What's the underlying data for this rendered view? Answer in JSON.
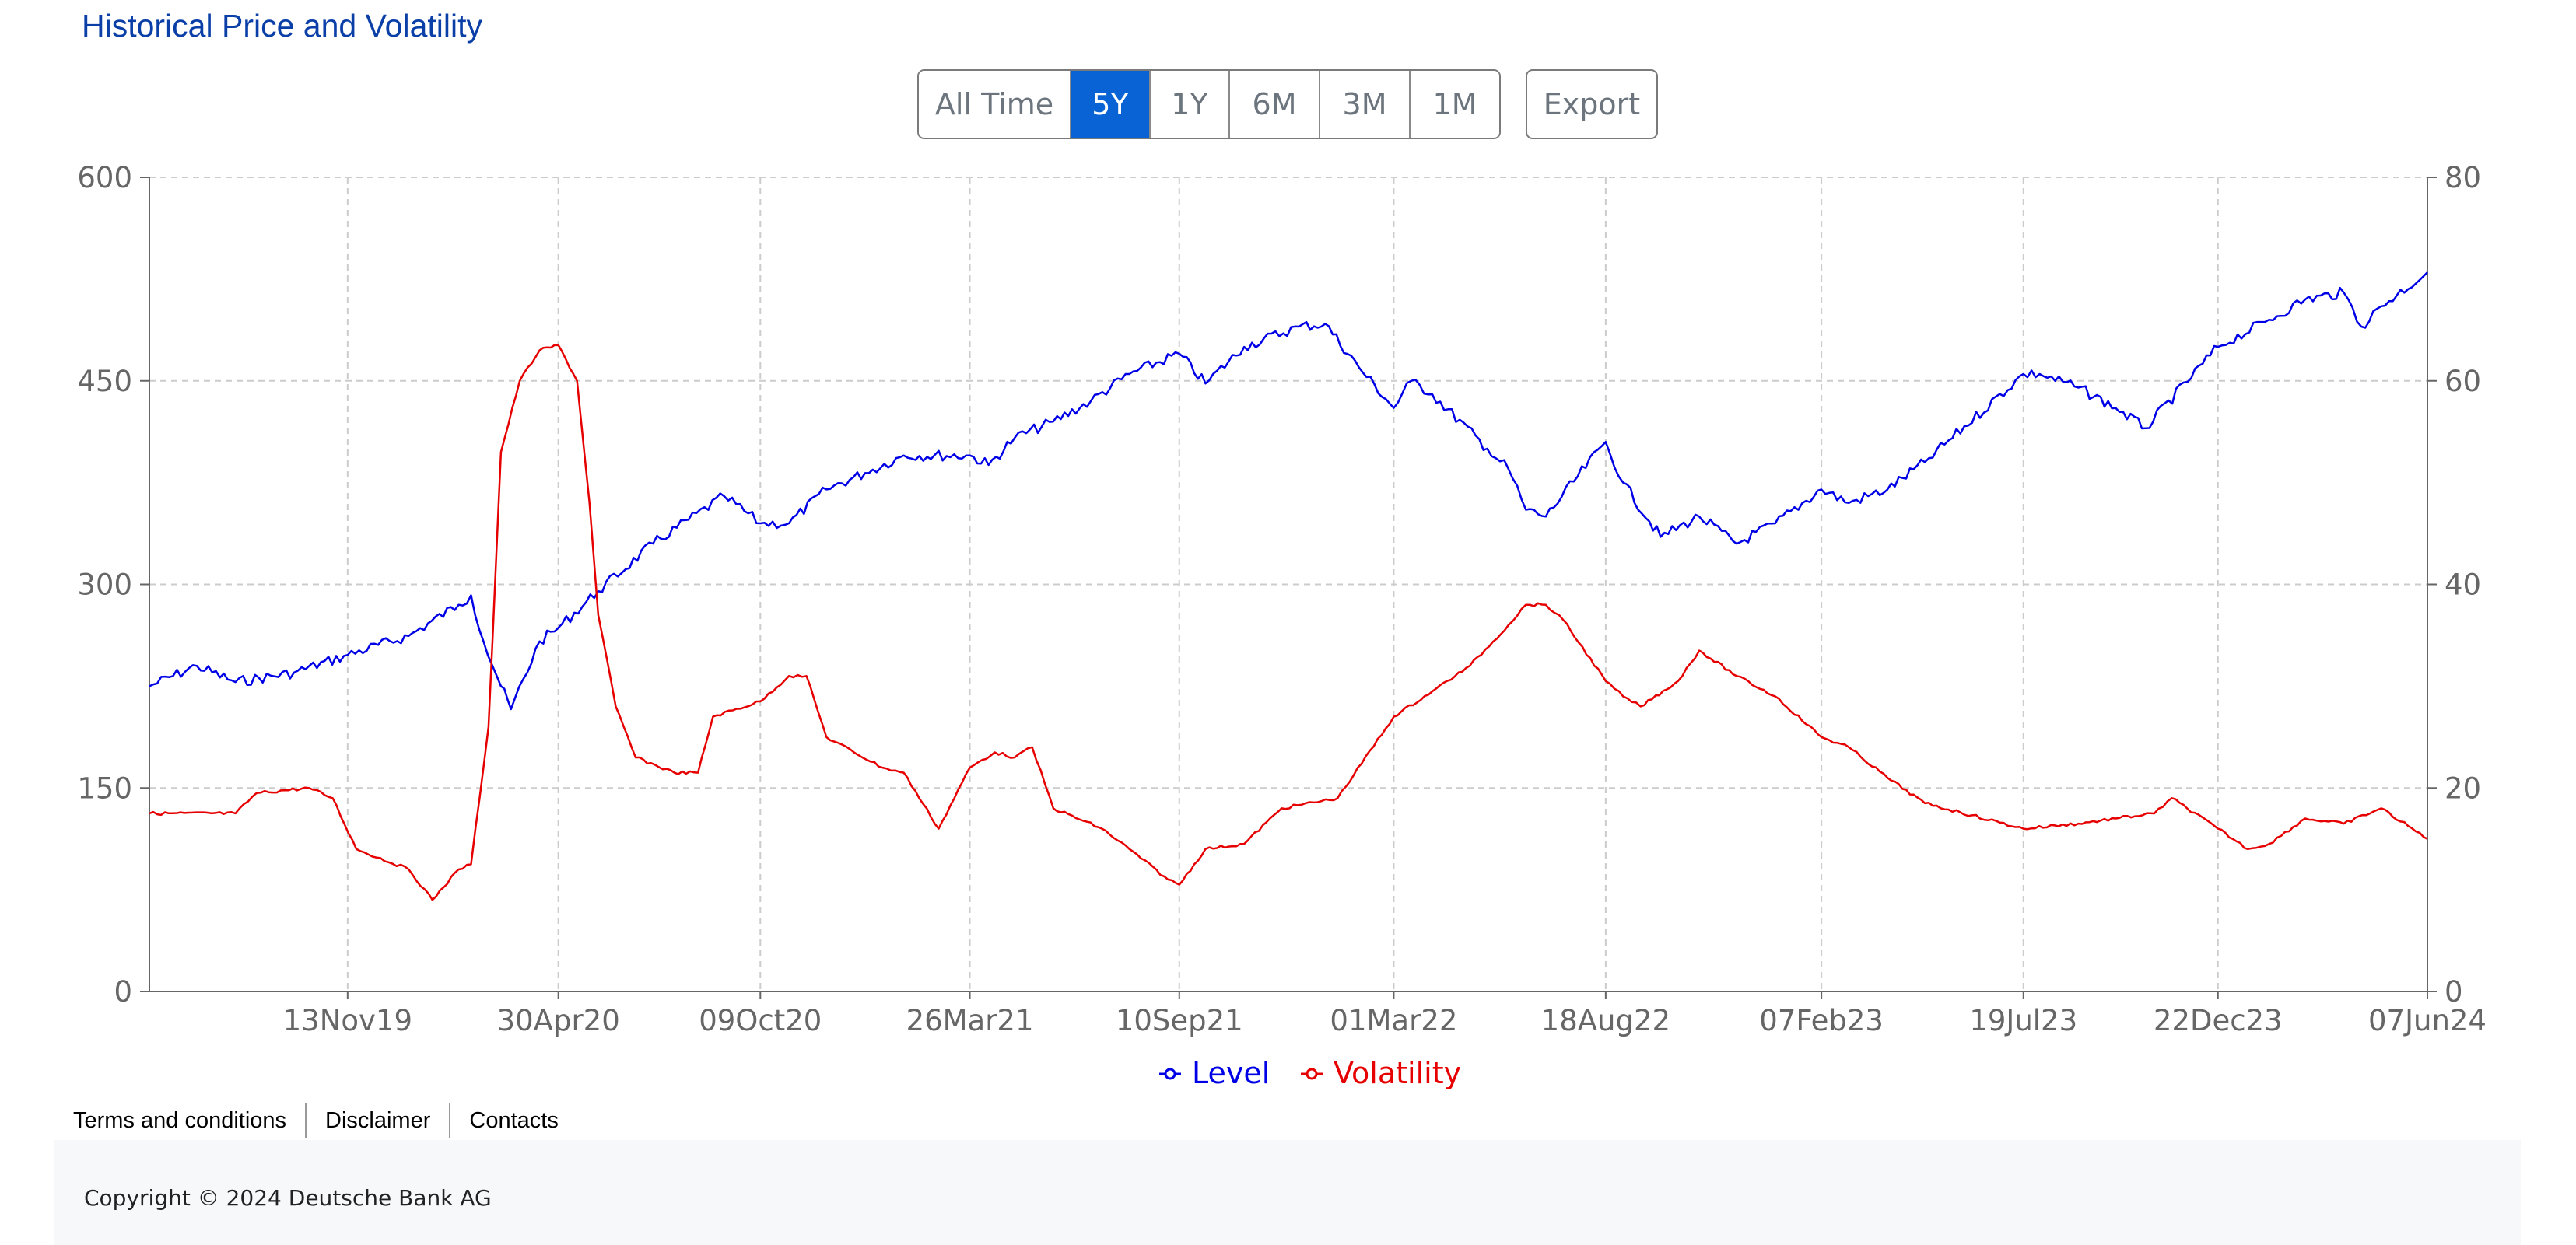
{
  "page": {
    "title": "Historical Price and Volatility"
  },
  "range_buttons": [
    {
      "label": "All Time",
      "active": false
    },
    {
      "label": "5Y",
      "active": true
    },
    {
      "label": "1Y",
      "active": false
    },
    {
      "label": "6M",
      "active": false
    },
    {
      "label": "3M",
      "active": false
    },
    {
      "label": "1M",
      "active": false
    }
  ],
  "export_label": "Export",
  "footer": {
    "links": [
      "Terms and conditions",
      "Disclaimer",
      "Contacts"
    ],
    "copyright": "Copyright © 2024 Deutsche Bank AG"
  },
  "colors": {
    "title": "#0a3fa8",
    "active_button": "#0a63d4",
    "level_series": "#0000e6",
    "volatility_series": "#e60000",
    "grid": "#cccccc"
  },
  "chart_data": {
    "type": "line",
    "x_start": "07Jun19",
    "x_end": "07Jun24",
    "x_tick_labels": [
      "13Nov19",
      "30Apr20",
      "09Oct20",
      "26Mar21",
      "10Sep21",
      "01Mar22",
      "18Aug22",
      "07Feb23",
      "19Jul23",
      "22Dec23",
      "07Jun24"
    ],
    "y_left": {
      "ylim": [
        0,
        600
      ],
      "ticks": [
        0,
        150,
        300,
        450,
        600
      ]
    },
    "y_right": {
      "ylim": [
        0,
        80
      ],
      "ticks": [
        0,
        20,
        40,
        60,
        80
      ]
    },
    "grid": true,
    "legend_position": "bottom-center",
    "series": [
      {
        "name": "Level",
        "axis": "left",
        "color": "#0000e6",
        "points": [
          [
            "07Jun19",
            225
          ],
          [
            "15Jul19",
            240
          ],
          [
            "15Aug19",
            228
          ],
          [
            "01Oct19",
            235
          ],
          [
            "13Nov19",
            248
          ],
          [
            "01Jan20",
            262
          ],
          [
            "10Feb20",
            285
          ],
          [
            "20Feb20",
            292
          ],
          [
            "01Mar20",
            258
          ],
          [
            "15Mar20",
            225
          ],
          [
            "23Mar20",
            208
          ],
          [
            "15Apr20",
            258
          ],
          [
            "30Apr20",
            268
          ],
          [
            "01Jun20",
            295
          ],
          [
            "15Jul20",
            330
          ],
          [
            "10Sep20",
            365
          ],
          [
            "09Oct20",
            345
          ],
          [
            "01Nov20",
            345
          ],
          [
            "01Dec20",
            370
          ],
          [
            "01Jan21",
            382
          ],
          [
            "01Feb21",
            395
          ],
          [
            "26Mar21",
            395
          ],
          [
            "10Apr21",
            388
          ],
          [
            "01May21",
            408
          ],
          [
            "01Jun21",
            420
          ],
          [
            "01Jul21",
            435
          ],
          [
            "01Aug21",
            455
          ],
          [
            "10Sep21",
            470
          ],
          [
            "01Oct21",
            448
          ],
          [
            "01Nov21",
            475
          ],
          [
            "15Dec21",
            490
          ],
          [
            "05Jan22",
            492
          ],
          [
            "01Feb22",
            460
          ],
          [
            "01Mar22",
            430
          ],
          [
            "15Mar22",
            450
          ],
          [
            "01Apr22",
            440
          ],
          [
            "15May22",
            400
          ],
          [
            "01Jun22",
            385
          ],
          [
            "15Jun22",
            355
          ],
          [
            "01Jul22",
            350
          ],
          [
            "18Aug22",
            405
          ],
          [
            "01Sep22",
            375
          ],
          [
            "01Oct22",
            335
          ],
          [
            "01Nov22",
            350
          ],
          [
            "01Dec22",
            330
          ],
          [
            "01Jan23",
            345
          ],
          [
            "07Feb23",
            370
          ],
          [
            "01Mar23",
            360
          ],
          [
            "01Apr23",
            370
          ],
          [
            "01May23",
            390
          ],
          [
            "19Jul23",
            455
          ],
          [
            "01Aug23",
            455
          ],
          [
            "01Sep23",
            445
          ],
          [
            "01Oct23",
            430
          ],
          [
            "25Oct23",
            415
          ],
          [
            "22Dec23",
            475
          ],
          [
            "01Feb24",
            495
          ],
          [
            "01Mar24",
            510
          ],
          [
            "01Apr24",
            515
          ],
          [
            "15Apr24",
            490
          ],
          [
            "01May24",
            505
          ],
          [
            "07Jun24",
            530
          ]
        ]
      },
      {
        "name": "Volatility",
        "axis": "right",
        "color": "#e60000",
        "points": [
          [
            "07Jun19",
            17.5
          ],
          [
            "15Aug19",
            17.5
          ],
          [
            "01Sep19",
            19.5
          ],
          [
            "13Oct19",
            20
          ],
          [
            "01Nov19",
            19
          ],
          [
            "20Nov19",
            14
          ],
          [
            "01Jan20",
            12
          ],
          [
            "20Jan20",
            9
          ],
          [
            "10Feb20",
            12
          ],
          [
            "20Feb20",
            12.5
          ],
          [
            "05Mar20",
            26
          ],
          [
            "15Mar20",
            53
          ],
          [
            "30Mar20",
            60
          ],
          [
            "15Apr20",
            63
          ],
          [
            "30Apr20",
            63.5
          ],
          [
            "15May20",
            60
          ],
          [
            "25May20",
            48
          ],
          [
            "01Jun20",
            37
          ],
          [
            "15Jun20",
            28
          ],
          [
            "01Jul20",
            23
          ],
          [
            "01Aug20",
            21.5
          ],
          [
            "20Aug20",
            21.5
          ],
          [
            "01Sep20",
            27
          ],
          [
            "09Oct20",
            28.5
          ],
          [
            "01Nov20",
            31
          ],
          [
            "15Nov20",
            31
          ],
          [
            "01Dec20",
            25
          ],
          [
            "15Jan21",
            22
          ],
          [
            "01Feb21",
            21.5
          ],
          [
            "01Mar21",
            16
          ],
          [
            "26Mar21",
            22
          ],
          [
            "15Apr21",
            23.5
          ],
          [
            "01May21",
            23
          ],
          [
            "15May21",
            24
          ],
          [
            "01Jun21",
            18
          ],
          [
            "10Jul21",
            16
          ],
          [
            "01Aug21",
            14
          ],
          [
            "01Sep21",
            11
          ],
          [
            "10Sep21",
            10.5
          ],
          [
            "01Oct21",
            14
          ],
          [
            "01Nov21",
            14.5
          ],
          [
            "01Dec21",
            18
          ],
          [
            "15Jan22",
            19
          ],
          [
            "01Mar22",
            27
          ],
          [
            "01Apr22",
            29.5
          ],
          [
            "01May22",
            32
          ],
          [
            "01Jun22",
            36
          ],
          [
            "15Jun22",
            38
          ],
          [
            "01Jul22",
            38
          ],
          [
            "15Jul22",
            36.5
          ],
          [
            "18Aug22",
            30.5
          ],
          [
            "01Sep22",
            29
          ],
          [
            "15Sep22",
            28
          ],
          [
            "15Oct22",
            30.5
          ],
          [
            "01Nov22",
            33.5
          ],
          [
            "01Dec22",
            31
          ],
          [
            "01Jan23",
            29
          ],
          [
            "07Feb23",
            25
          ],
          [
            "01Mar23",
            24
          ],
          [
            "01Apr23",
            21
          ],
          [
            "01May23",
            18.5
          ],
          [
            "19Jul23",
            16
          ],
          [
            "01Sep23",
            16.5
          ],
          [
            "01Oct23",
            17
          ],
          [
            "01Nov23",
            17.5
          ],
          [
            "15Nov23",
            19
          ],
          [
            "22Dec23",
            16
          ],
          [
            "15Jan24",
            14
          ],
          [
            "01Feb24",
            14.5
          ],
          [
            "01Mar24",
            17
          ],
          [
            "01Apr24",
            16.5
          ],
          [
            "01May24",
            18
          ],
          [
            "07Jun24",
            15
          ]
        ]
      }
    ]
  }
}
